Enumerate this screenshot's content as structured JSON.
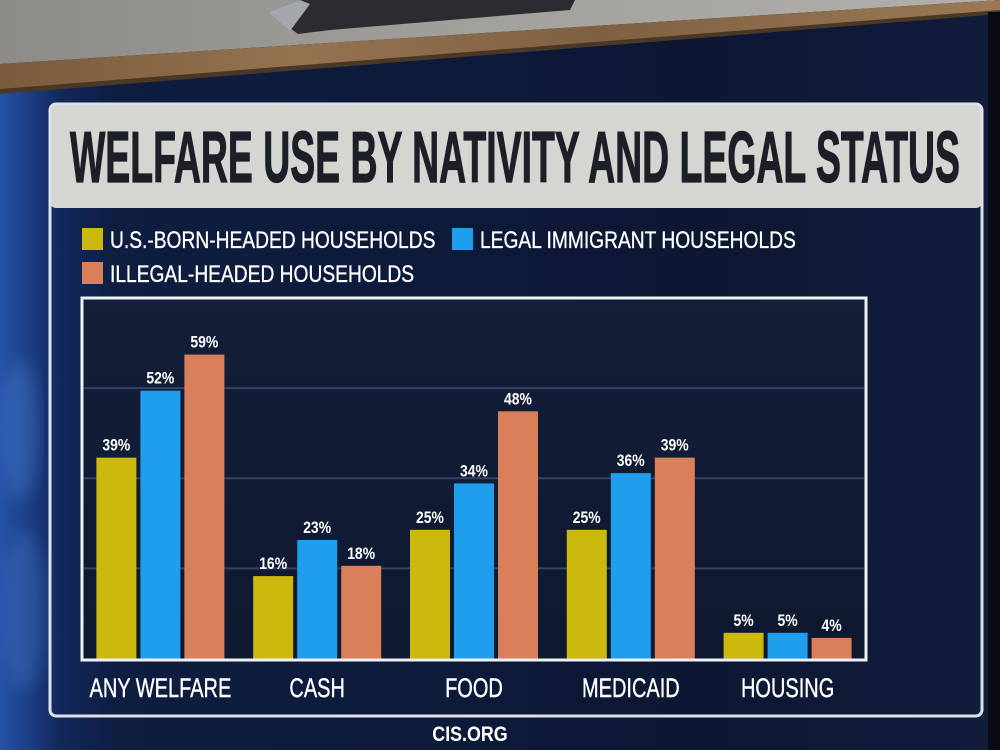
{
  "source": "CIS.ORG",
  "chart_data": {
    "type": "bar",
    "title": "WELFARE USE BY NATIVITY AND LEGAL STATUS",
    "categories": [
      "ANY WELFARE",
      "CASH",
      "FOOD",
      "MEDICAID",
      "HOUSING"
    ],
    "unit": "%",
    "series": [
      {
        "name": "U.S.-BORN-HEADED HOUSEHOLDS",
        "color": "#cbb90e",
        "values": [
          39,
          16,
          25,
          25,
          5
        ]
      },
      {
        "name": "LEGAL IMMIGRANT HOUSEHOLDS",
        "color": "#1f9eee",
        "values": [
          52,
          23,
          34,
          36,
          5
        ]
      },
      {
        "name": "ILLEGAL-HEADED HOUSEHOLDS",
        "color": "#d9805b",
        "values": [
          59,
          18,
          48,
          39,
          4
        ]
      }
    ],
    "ylim": [
      0,
      70
    ],
    "grid": true,
    "legend": "top"
  }
}
